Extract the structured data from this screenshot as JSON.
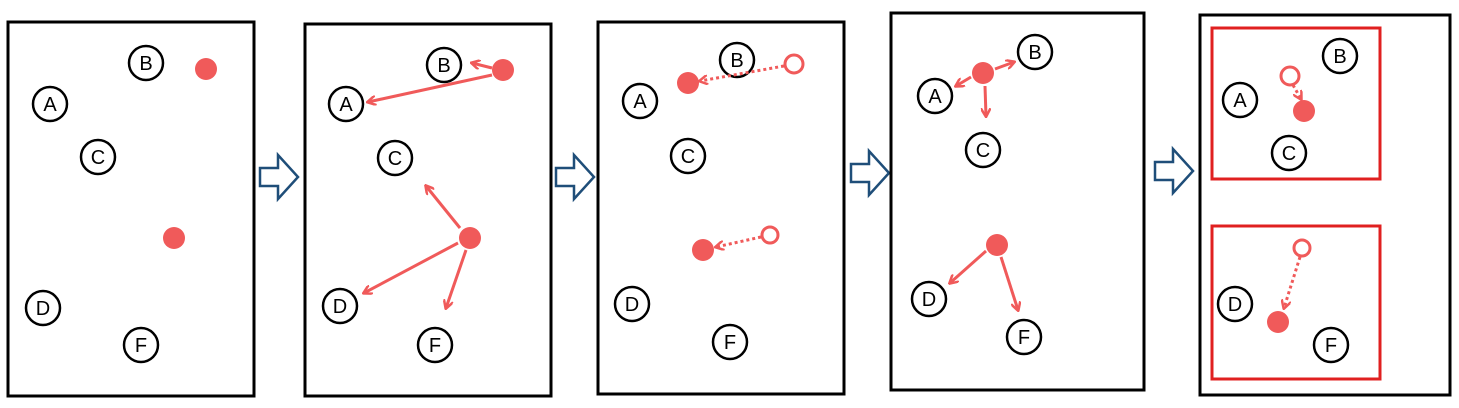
{
  "colors": {
    "accent": "#f05a5a",
    "highlight": "#e02020",
    "flow_arrow": "#1f4e79",
    "border": "#000000"
  },
  "panels": [
    {
      "id": 1,
      "nodes": [
        "A",
        "B",
        "C",
        "D",
        "F"
      ]
    },
    {
      "id": 2,
      "nodes": [
        "A",
        "B",
        "C",
        "D",
        "F"
      ]
    },
    {
      "id": 3,
      "nodes": [
        "A",
        "B",
        "C",
        "D",
        "F"
      ]
    },
    {
      "id": 4,
      "nodes": [
        "A",
        "B",
        "C",
        "D",
        "F"
      ]
    },
    {
      "id": 5,
      "nodes": [
        "A",
        "B",
        "C",
        "D",
        "F"
      ]
    }
  ]
}
